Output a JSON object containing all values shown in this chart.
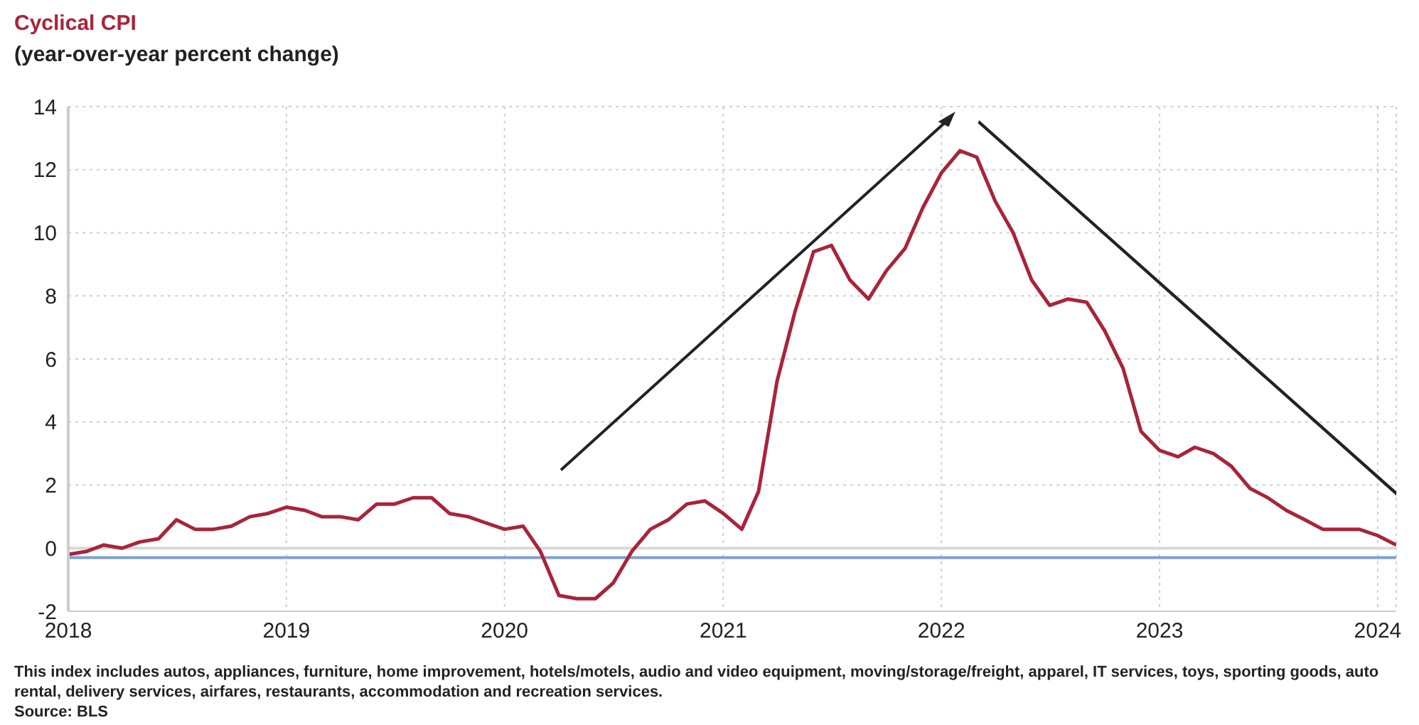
{
  "chart_data": {
    "type": "line",
    "title": "Cyclical CPI",
    "subtitle": "(year-over-year percent change)",
    "x": [
      "2018-01",
      "2018-02",
      "2018-03",
      "2018-04",
      "2018-05",
      "2018-06",
      "2018-07",
      "2018-08",
      "2018-09",
      "2018-10",
      "2018-11",
      "2018-12",
      "2019-01",
      "2019-02",
      "2019-03",
      "2019-04",
      "2019-05",
      "2019-06",
      "2019-07",
      "2019-08",
      "2019-09",
      "2019-10",
      "2019-11",
      "2019-12",
      "2020-01",
      "2020-02",
      "2020-03",
      "2020-04",
      "2020-05",
      "2020-06",
      "2020-07",
      "2020-08",
      "2020-09",
      "2020-10",
      "2020-11",
      "2020-12",
      "2021-01",
      "2021-02",
      "2021-03",
      "2021-04",
      "2021-05",
      "2021-06",
      "2021-07",
      "2021-08",
      "2021-09",
      "2021-10",
      "2021-11",
      "2021-12",
      "2022-01",
      "2022-02",
      "2022-03",
      "2022-04",
      "2022-05",
      "2022-06",
      "2022-07",
      "2022-08",
      "2022-09",
      "2022-10",
      "2022-11",
      "2022-12",
      "2023-01",
      "2023-02",
      "2023-03",
      "2023-04",
      "2023-05",
      "2023-06",
      "2023-07",
      "2023-08",
      "2023-09",
      "2023-10",
      "2023-11",
      "2023-12",
      "2024-01",
      "2024-02"
    ],
    "series": [
      {
        "color": "#a8243a",
        "values": [
          -0.2,
          -0.1,
          0.1,
          0.0,
          0.2,
          0.3,
          0.9,
          0.6,
          0.6,
          0.7,
          1.0,
          1.1,
          1.3,
          1.2,
          1.0,
          1.0,
          0.9,
          1.4,
          1.4,
          1.6,
          1.6,
          1.1,
          1.0,
          0.8,
          0.6,
          0.7,
          -0.1,
          -1.5,
          -1.6,
          -1.6,
          -1.1,
          -0.1,
          0.6,
          0.9,
          1.4,
          1.5,
          1.1,
          0.6,
          1.8,
          5.3,
          7.5,
          9.4,
          9.6,
          8.5,
          7.9,
          8.8,
          9.5,
          10.8,
          11.9,
          12.6,
          12.4,
          11.0,
          10.0,
          8.5,
          7.7,
          7.9,
          7.8,
          6.9,
          5.7,
          3.7,
          3.1,
          2.9,
          3.2,
          3.0,
          2.6,
          1.9,
          1.6,
          1.2,
          0.9,
          0.6,
          0.6,
          0.6,
          0.4,
          0.1
        ]
      }
    ],
    "xlim": [
      "2018-01",
      "2024-02"
    ],
    "xticks": [
      "2018",
      "2019",
      "2020",
      "2021",
      "2022",
      "2023",
      "2024"
    ],
    "ylim": [
      -2,
      14
    ],
    "yticks": [
      -2,
      0,
      2,
      4,
      6,
      8,
      10,
      12,
      14
    ],
    "grid": true,
    "legend": false,
    "marker": "none",
    "line_style": "solid",
    "ref_lines": [
      {
        "axis": "y",
        "value": 0,
        "color": "#d9d9d9"
      },
      {
        "axis": "y",
        "value": -0.3,
        "color": "#7ba0d0"
      }
    ],
    "annotations": [
      "This index includes autos, appliances, furniture, home improvement, hotels/motels, audio and video equipment, moving/storage/freight, apparel, IT services, toys, sporting goods, auto rental, delivery services, airfares, restaurants, accommodation and recreation services.",
      "Source: BLS"
    ]
  }
}
